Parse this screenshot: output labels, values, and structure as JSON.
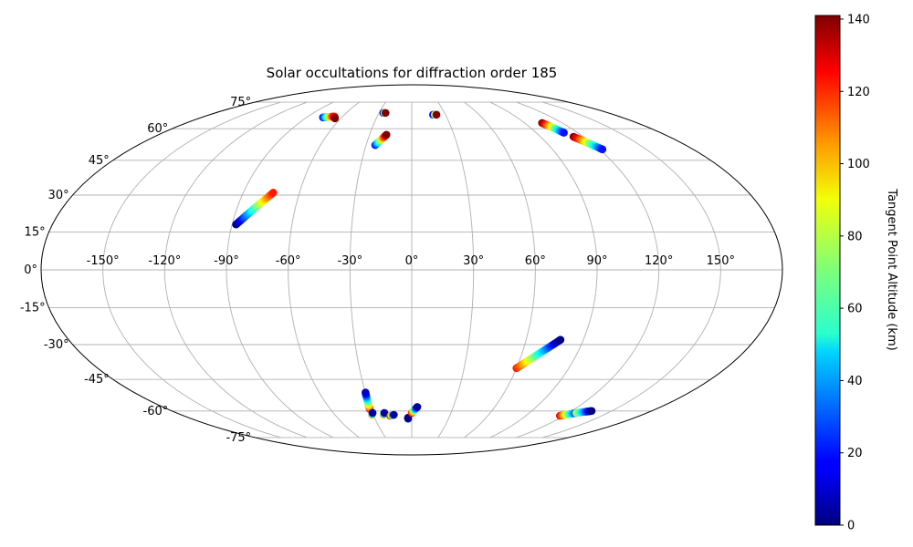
{
  "chart_data": {
    "type": "scatter",
    "projection": "mollweide",
    "title": "Solar occultations for diffraction order 185",
    "grid": true,
    "lon_tick_labels": [
      "-150°",
      "-120°",
      "-90°",
      "-60°",
      "-30°",
      "0°",
      "30°",
      "60°",
      "90°",
      "120°",
      "150°"
    ],
    "lon_ticks": [
      -150,
      -120,
      -90,
      -60,
      -30,
      0,
      30,
      60,
      90,
      120,
      150
    ],
    "lat_tick_labels": [
      "-75°",
      "-60°",
      "-45°",
      "-30°",
      "-15°",
      "0°",
      "15°",
      "30°",
      "45°",
      "60°",
      "75°"
    ],
    "lat_ticks": [
      -75,
      -60,
      -45,
      -30,
      -15,
      0,
      15,
      30,
      45,
      60,
      75
    ],
    "colorbar": {
      "label": "Tangent Point Altitude (km)",
      "range": [
        0,
        141
      ],
      "tick_values": [
        0,
        20,
        40,
        60,
        80,
        100,
        120,
        140
      ],
      "tick_labels": [
        "0",
        "20",
        "40",
        "60",
        "80",
        "100",
        "120",
        "140"
      ],
      "colormap": "jet"
    },
    "tracks": [
      {
        "lon_start": -88,
        "lat_start": 18,
        "lon_end": -74,
        "lat_end": 31,
        "alt_start": 0,
        "alt_end": 120
      },
      {
        "lon_start": -76,
        "lat_start": 66,
        "lon_end": -68,
        "lat_end": 66.5,
        "alt_start": 20,
        "alt_end": 125
      },
      {
        "lon_start": -67,
        "lat_start": 66.5,
        "lon_end": -65,
        "lat_end": 65.5,
        "alt_start": 120,
        "alt_end": 141
      },
      {
        "lon_start": -26,
        "lat_start": 68.5,
        "lon_end": -24,
        "lat_end": 68.5,
        "alt_start": 10,
        "alt_end": 141
      },
      {
        "lon_start": -24,
        "lat_start": 52,
        "lon_end": -18,
        "lat_end": 57,
        "alt_start": 20,
        "alt_end": 141
      },
      {
        "lon_start": 19,
        "lat_start": 67.5,
        "lon_end": 22,
        "lat_end": 67.5,
        "alt_start": 20,
        "alt_end": 141
      },
      {
        "lon_start": 104,
        "lat_start": 63,
        "lon_end": 110,
        "lat_end": 58,
        "alt_start": 141,
        "alt_end": 20
      },
      {
        "lon_start": 113,
        "lat_start": 56,
        "lon_end": 122,
        "lat_end": 50,
        "alt_start": 141,
        "alt_end": 20
      },
      {
        "lon_start": 60,
        "lat_start": -40,
        "lon_end": 78,
        "lat_end": -28,
        "alt_start": 120,
        "alt_end": 0
      },
      {
        "lon_start": -31,
        "lat_start": -59,
        "lon_end": -30,
        "lat_end": -51,
        "alt_start": 120,
        "alt_end": 10
      },
      {
        "lon_start": -31,
        "lat_start": -62,
        "lon_end": -30,
        "lat_end": -61,
        "alt_start": 100,
        "alt_end": 5
      },
      {
        "lon_start": -22,
        "lat_start": -62,
        "lon_end": -21,
        "lat_end": -61,
        "alt_start": 100,
        "alt_end": 5
      },
      {
        "lon_start": -17,
        "lat_start": -62.5,
        "lon_end": -14,
        "lat_end": -62,
        "alt_start": 120,
        "alt_end": 5
      },
      {
        "lon_start": -3,
        "lat_start": -64,
        "lon_end": -3,
        "lat_end": -63.5,
        "alt_start": 10,
        "alt_end": 0
      },
      {
        "lon_start": 0,
        "lat_start": -61,
        "lon_end": 4,
        "lat_end": -58,
        "alt_start": 120,
        "alt_end": 5
      },
      {
        "lon_start": 117,
        "lat_start": -62.5,
        "lon_end": 126,
        "lat_end": -61,
        "alt_start": 125,
        "alt_end": 20
      },
      {
        "lon_start": 126,
        "lat_start": -61,
        "lon_end": 135,
        "lat_end": -60,
        "alt_start": 80,
        "alt_end": 0
      }
    ]
  }
}
